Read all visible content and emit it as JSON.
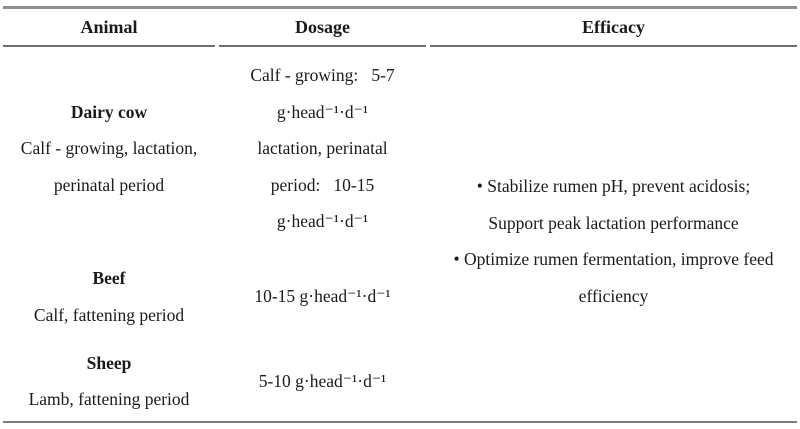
{
  "table": {
    "headers": {
      "animal": "Animal",
      "dosage": "Dosage",
      "efficacy": "Efficacy"
    },
    "rows": [
      {
        "animal_name": "Dairy cow",
        "animal_desc_lines": [
          "Calf - growing, lactation,",
          "perinatal period"
        ],
        "dosage_lines": [
          "Calf - growing:  5-7",
          "g·head⁻¹·d⁻¹",
          "lactation, perinatal",
          "period:  10-15",
          "g·head⁻¹·d⁻¹"
        ]
      },
      {
        "animal_name": "Beef",
        "animal_desc_lines": [
          "Calf, fattening period"
        ],
        "dosage_lines": [
          "10-15 g·head⁻¹·d⁻¹"
        ]
      },
      {
        "animal_name": "Sheep",
        "animal_desc_lines": [
          "Lamb, fattening period"
        ],
        "dosage_lines": [
          "5-10 g·head⁻¹·d⁻¹"
        ]
      }
    ],
    "efficacy_lines": [
      "• Stabilize rumen pH, prevent acidosis;",
      "Support peak lactation performance",
      "• Optimize rumen fermentation, improve feed",
      "efficiency"
    ]
  },
  "colors": {
    "rule_top": "#8f8f8f",
    "rule_header": "#6f6f6f",
    "rule_bottom": "#7d7d7d",
    "text": "#1a1a1a",
    "bg": "#ffffff"
  }
}
